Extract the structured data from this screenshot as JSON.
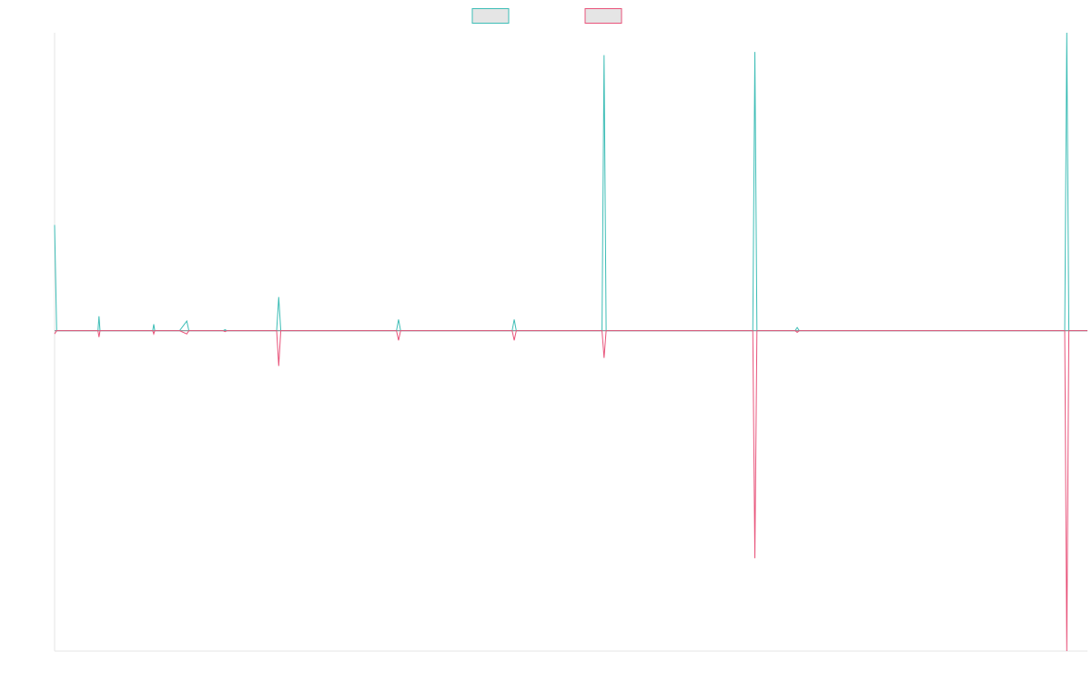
{
  "chart_data": {
    "type": "line",
    "title": "",
    "xlabel": "",
    "ylabel": "",
    "grid": false,
    "legend": {
      "position": "top-center",
      "shape": "box",
      "labels_visible": false
    },
    "colors": {
      "series_1": "#3dbdb6",
      "series_2": "#e8537a",
      "zero_line": "#7f8c8d",
      "axis": "#e6e6e6",
      "legend_fill": "#e5e5e5"
    },
    "x_range": [
      0,
      1000
    ],
    "ylim": [
      -1.0,
      0.93
    ],
    "series": [
      {
        "color": "#3dbdb6",
        "points": [
          [
            0,
            0.33
          ],
          [
            2,
            0.0
          ],
          [
            42,
            0.0
          ],
          [
            43,
            0.045
          ],
          [
            44,
            0.0
          ],
          [
            95,
            0.0
          ],
          [
            96,
            0.02
          ],
          [
            97,
            0.0
          ],
          [
            121,
            0.0
          ],
          [
            128,
            0.03
          ],
          [
            130,
            0.0
          ],
          [
            163,
            0.0
          ],
          [
            165,
            0.003
          ],
          [
            167,
            0.0
          ],
          [
            215,
            0.0
          ],
          [
            217,
            0.105
          ],
          [
            219,
            0.0
          ],
          [
            331,
            0.0
          ],
          [
            333,
            0.035
          ],
          [
            335,
            0.0
          ],
          [
            443,
            0.0
          ],
          [
            445,
            0.035
          ],
          [
            447,
            0.0
          ],
          [
            530,
            0.0
          ],
          [
            532,
            0.86
          ],
          [
            534,
            0.0
          ],
          [
            676,
            0.0
          ],
          [
            678,
            0.87
          ],
          [
            680,
            0.0
          ],
          [
            717,
            0.0
          ],
          [
            719,
            0.01
          ],
          [
            721,
            0.0
          ],
          [
            978,
            0.0
          ],
          [
            980,
            0.93
          ],
          [
            982,
            0.0
          ],
          [
            1000,
            0.0
          ]
        ]
      },
      {
        "color": "#e8537a",
        "points": [
          [
            0,
            -0.01
          ],
          [
            2,
            0.0
          ],
          [
            42,
            0.0
          ],
          [
            43,
            -0.02
          ],
          [
            44,
            0.0
          ],
          [
            95,
            0.0
          ],
          [
            96,
            -0.01
          ],
          [
            97,
            0.0
          ],
          [
            121,
            0.0
          ],
          [
            128,
            -0.01
          ],
          [
            130,
            0.0
          ],
          [
            163,
            0.0
          ],
          [
            165,
            -0.003
          ],
          [
            167,
            0.0
          ],
          [
            215,
            0.0
          ],
          [
            217,
            -0.11
          ],
          [
            219,
            0.0
          ],
          [
            331,
            0.0
          ],
          [
            333,
            -0.03
          ],
          [
            335,
            0.0
          ],
          [
            443,
            0.0
          ],
          [
            445,
            -0.03
          ],
          [
            447,
            0.0
          ],
          [
            530,
            0.0
          ],
          [
            532,
            -0.085
          ],
          [
            534,
            0.0
          ],
          [
            676,
            0.0
          ],
          [
            678,
            -0.71
          ],
          [
            680,
            0.0
          ],
          [
            717,
            0.0
          ],
          [
            719,
            -0.005
          ],
          [
            721,
            0.0
          ],
          [
            978,
            0.0
          ],
          [
            980,
            -1.0
          ],
          [
            982,
            0.0
          ],
          [
            1000,
            0.0
          ]
        ]
      }
    ]
  }
}
